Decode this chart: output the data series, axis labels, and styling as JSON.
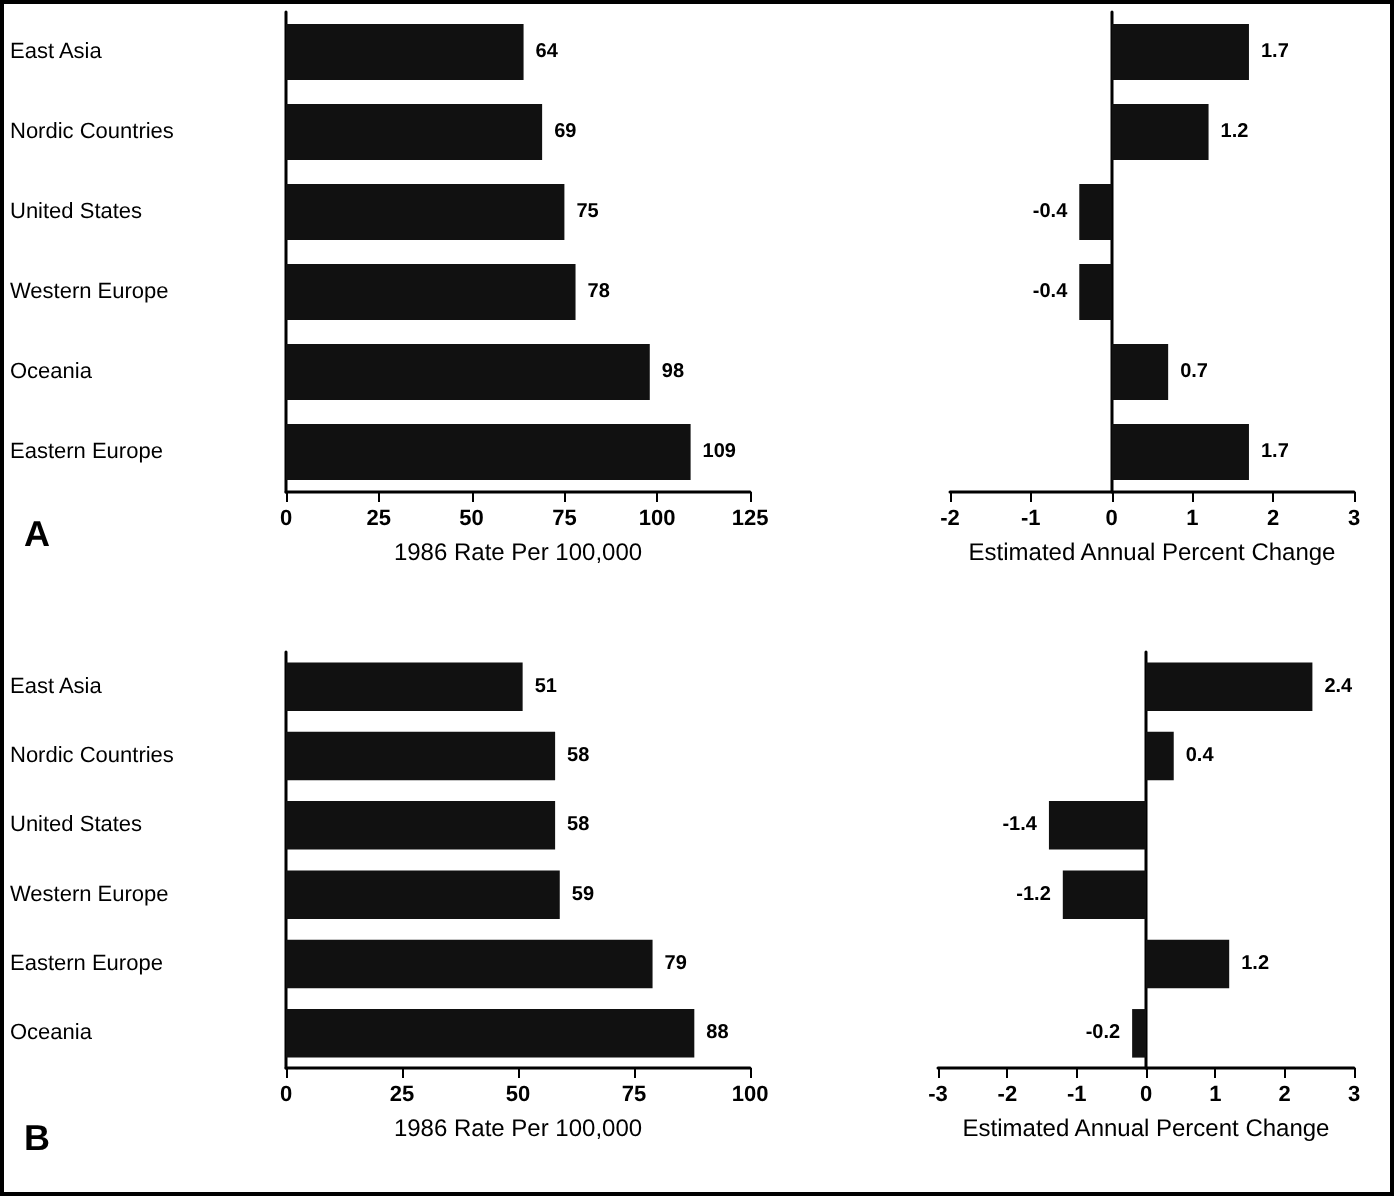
{
  "chart_data": [
    {
      "type": "bar",
      "orientation": "horizontal",
      "categories": [
        "East Asia",
        "Nordic Countries",
        "United States",
        "Western Europe",
        "Oceania",
        "Eastern Europe"
      ],
      "values": [
        64,
        69,
        75,
        78,
        98,
        109
      ],
      "color": "#111111",
      "xlim": [
        0,
        125
      ],
      "xticks": [
        0,
        25,
        50,
        75,
        100,
        125
      ],
      "xlabel": "1986 Rate Per 100,000",
      "data_labels": true,
      "annotations": [
        "A"
      ]
    },
    {
      "type": "bar",
      "orientation": "horizontal",
      "categories": [
        null,
        null,
        null,
        null,
        null,
        null
      ],
      "values": [
        1.7,
        1.2,
        -0.4,
        -0.4,
        0.7,
        1.7
      ],
      "color": "#111111",
      "xlim": [
        -2,
        3
      ],
      "xticks": [
        -2,
        -1,
        0,
        1,
        2,
        3
      ],
      "xlabel": "Estimated Annual Percent Change",
      "data_labels": true
    },
    {
      "type": "bar",
      "orientation": "horizontal",
      "categories": [
        "East Asia",
        "Nordic Countries",
        "United States",
        "Western Europe",
        "Eastern Europe",
        "Oceania"
      ],
      "values": [
        51,
        58,
        58,
        59,
        79,
        88
      ],
      "color": "#111111",
      "xlim": [
        0,
        100
      ],
      "xticks": [
        0,
        25,
        50,
        75,
        100
      ],
      "xlabel": "1986 Rate Per 100,000",
      "data_labels": true,
      "annotations": [
        "B"
      ]
    },
    {
      "type": "bar",
      "orientation": "horizontal",
      "categories": [
        null,
        null,
        null,
        null,
        null,
        null
      ],
      "values": [
        2.4,
        0.4,
        -1.4,
        -1.2,
        1.2,
        -0.2
      ],
      "color": "#111111",
      "xlim": [
        -3,
        3
      ],
      "xticks": [
        -3,
        -2,
        -1,
        0,
        1,
        2,
        3
      ],
      "xlabel": "Estimated Annual Percent Change",
      "data_labels": true
    }
  ]
}
